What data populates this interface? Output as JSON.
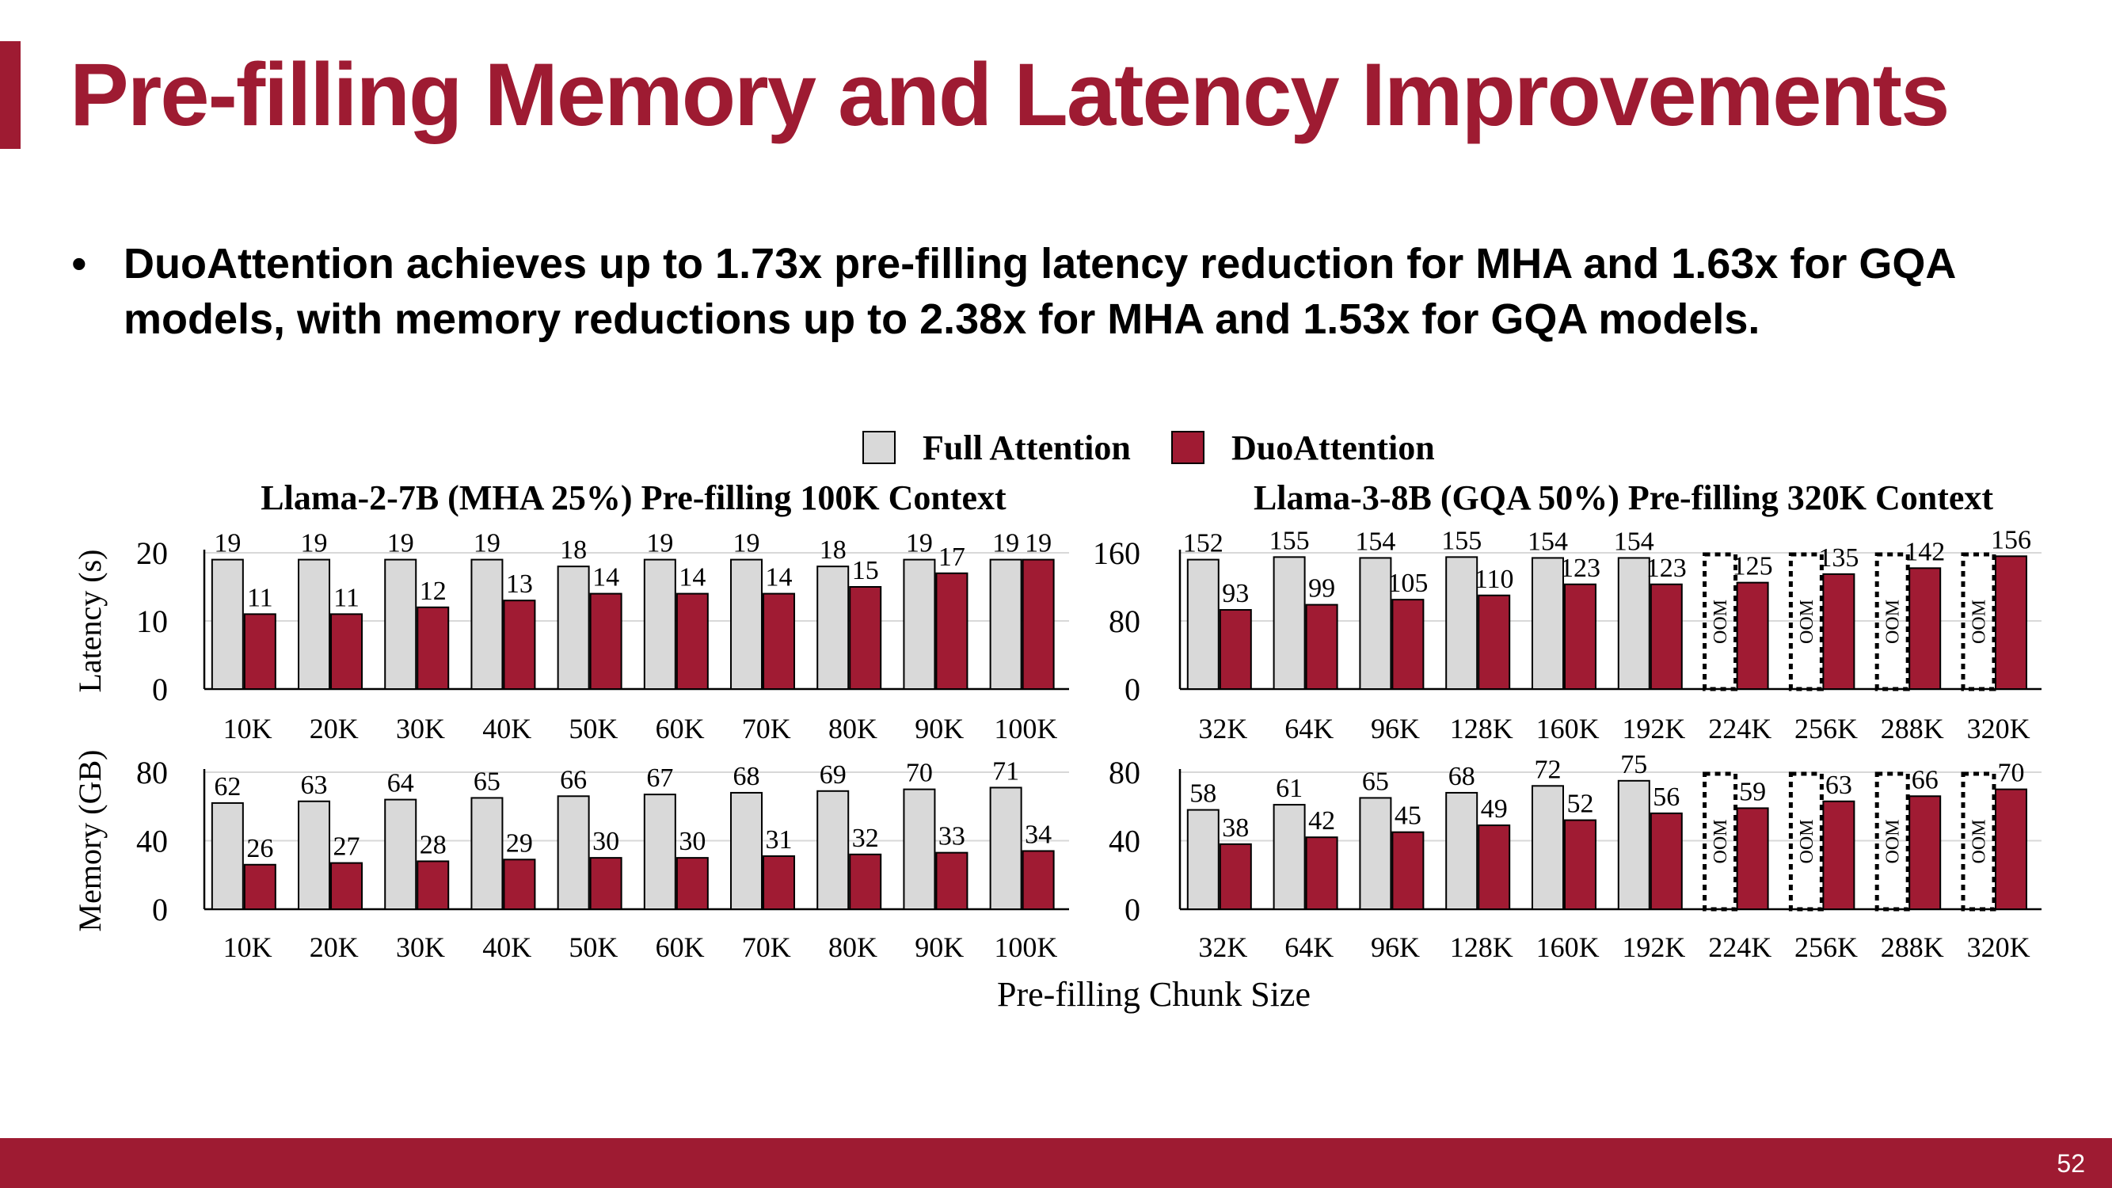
{
  "slide": {
    "title": "Pre-filling Memory and Latency Improvements",
    "bullet": "DuoAttention achieves up to 1.73x pre-filling latency reduction for MHA and 1.63x for GQA models, with memory reductions up to 2.38x for MHA and 1.53x for GQA models.",
    "page_number": "52",
    "accent_color": "#9e1b32"
  },
  "chart_data": {
    "type": "bar",
    "legend": {
      "placement": "top-center",
      "entries": [
        {
          "label": "Full Attention",
          "color": "#d9d9d9"
        },
        {
          "label": "DuoAttention",
          "color": "#a01b33"
        }
      ]
    },
    "xlabel": "Pre-filling Chunk Size",
    "oom_label": "OOM",
    "panels": [
      {
        "title": "Llama-2-7B (MHA 25%) Pre-filling 100K Context",
        "ylabel": "Latency (s)",
        "ylim": [
          0,
          20
        ],
        "yticks": [
          "0",
          "10",
          "20"
        ],
        "categories": [
          "10K",
          "20K",
          "30K",
          "40K",
          "50K",
          "60K",
          "70K",
          "80K",
          "90K",
          "100K"
        ],
        "series": [
          {
            "name": "Full Attention",
            "values": [
              19,
              19,
              19,
              19,
              18,
              19,
              19,
              18,
              19,
              19
            ]
          },
          {
            "name": "DuoAttention",
            "values": [
              11,
              11,
              12,
              13,
              14,
              14,
              14,
              15,
              17,
              19
            ]
          }
        ]
      },
      {
        "title": "Llama-3-8B (GQA 50%) Pre-filling 320K Context",
        "ylim": [
          0,
          160
        ],
        "yticks": [
          "0",
          "80",
          "160"
        ],
        "categories": [
          "32K",
          "64K",
          "96K",
          "128K",
          "160K",
          "192K",
          "224K",
          "256K",
          "288K",
          "320K"
        ],
        "series": [
          {
            "name": "Full Attention",
            "values": [
              152,
              155,
              154,
              155,
              154,
              154,
              "OOM",
              "OOM",
              "OOM",
              "OOM"
            ]
          },
          {
            "name": "DuoAttention",
            "values": [
              93,
              99,
              105,
              110,
              123,
              123,
              125,
              135,
              142,
              156
            ]
          }
        ]
      },
      {
        "ylabel": "Memory (GB)",
        "ylim": [
          0,
          80
        ],
        "yticks": [
          "0",
          "40",
          "80"
        ],
        "categories": [
          "10K",
          "20K",
          "30K",
          "40K",
          "50K",
          "60K",
          "70K",
          "80K",
          "90K",
          "100K"
        ],
        "series": [
          {
            "name": "Full Attention",
            "values": [
              62,
              63,
              64,
              65,
              66,
              67,
              68,
              69,
              70,
              71
            ]
          },
          {
            "name": "DuoAttention",
            "values": [
              26,
              27,
              28,
              29,
              30,
              30,
              31,
              32,
              33,
              34
            ]
          }
        ]
      },
      {
        "ylim": [
          0,
          80
        ],
        "yticks": [
          "0",
          "40",
          "80"
        ],
        "categories": [
          "32K",
          "64K",
          "96K",
          "128K",
          "160K",
          "192K",
          "224K",
          "256K",
          "288K",
          "320K"
        ],
        "series": [
          {
            "name": "Full Attention",
            "values": [
              58,
              61,
              65,
              68,
              72,
              75,
              "OOM",
              "OOM",
              "OOM",
              "OOM"
            ]
          },
          {
            "name": "DuoAttention",
            "values": [
              38,
              42,
              45,
              49,
              52,
              56,
              59,
              63,
              66,
              70
            ]
          }
        ]
      }
    ]
  }
}
